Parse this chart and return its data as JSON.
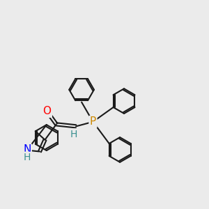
{
  "background_color": "#ebebeb",
  "bond_color": "#1a1a1a",
  "bond_width": 1.5,
  "atom_colors": {
    "O": "#ff0000",
    "N": "#0000ff",
    "P": "#cc8800",
    "H": "#3a9090",
    "C": "#1a1a1a"
  },
  "figsize": [
    3.0,
    3.0
  ],
  "dpi": 100,
  "xlim": [
    0,
    10
  ],
  "ylim": [
    0,
    10
  ]
}
